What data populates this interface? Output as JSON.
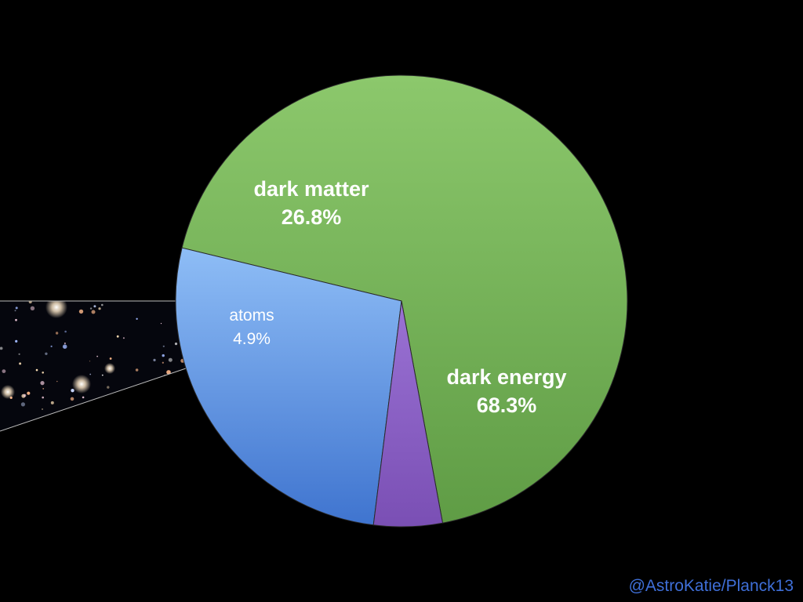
{
  "chart_data": {
    "type": "pie",
    "slices": [
      {
        "label": "dark energy",
        "value_label": "68.3%",
        "value": 68.3,
        "color": "#6aaa4f"
      },
      {
        "label": "dark matter",
        "value_label": "26.8%",
        "value": 26.8,
        "color": "#5a8fe0"
      },
      {
        "label": "atoms",
        "value_label": "4.9%",
        "value": 4.9,
        "color": "#8a5fc4"
      }
    ],
    "exploded_slice": "atoms",
    "exploded_slice_inset": "galaxy-field-image"
  },
  "credit": "@AstroKatie/Planck13",
  "colors": {
    "background": "#000000",
    "credit_text": "#3f6fd8"
  }
}
